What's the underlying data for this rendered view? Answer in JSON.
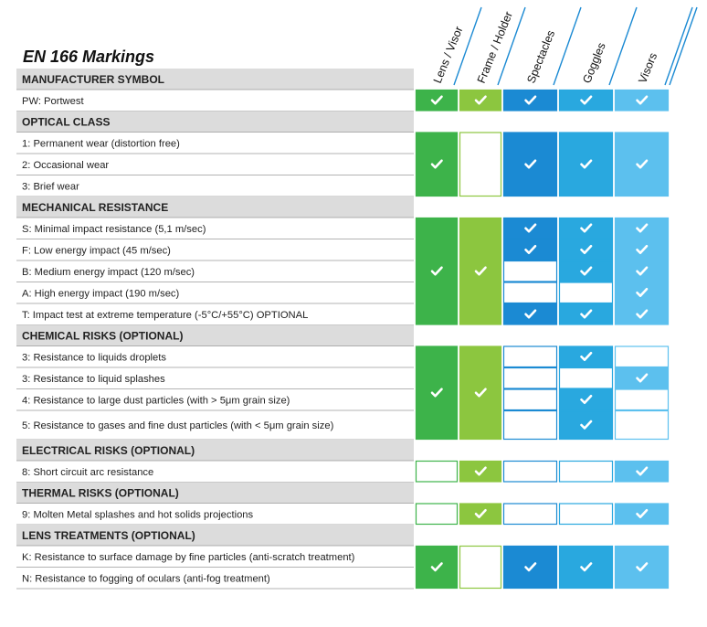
{
  "title": "EN 166 Markings",
  "columns": [
    "Lens / Visor",
    "Frame / Holder",
    "Spectacles",
    "Goggles",
    "Visors"
  ],
  "colors": {
    "green": "#3db34a",
    "light_green": "#8cc63f",
    "blue": "#1b8ad3",
    "mid_blue": "#29a8df",
    "light_blue": "#5cc0ee",
    "header_bg": "#dcdcdc",
    "rule": "#9a9a9a",
    "check": "#ffffff"
  },
  "sections": [
    {
      "name": "MANUFACTURER SYMBOL",
      "rows": [
        {
          "label": "PW: Portwest"
        }
      ],
      "blocks": [
        {
          "rows": [
            0,
            0
          ],
          "marks": [
            true,
            true,
            true,
            true,
            true
          ]
        }
      ]
    },
    {
      "name": "OPTICAL CLASS",
      "rows": [
        {
          "label": "1: Permanent wear (distortion free)"
        },
        {
          "label": "2: Occasional wear"
        },
        {
          "label": "3: Brief wear"
        }
      ],
      "blocks": [
        {
          "rows": [
            0,
            2
          ],
          "marks": [
            true,
            false,
            true,
            true,
            true
          ]
        }
      ]
    },
    {
      "name": "MECHANICAL RESISTANCE",
      "rows": [
        {
          "label": "S: Minimal impact resistance (5,1 m/sec)",
          "marks": [
            null,
            null,
            true,
            true,
            true
          ]
        },
        {
          "label": "F: Low energy impact (45 m/sec)",
          "marks": [
            null,
            null,
            true,
            true,
            true
          ]
        },
        {
          "label": "B: Medium energy impact (120 m/sec)",
          "marks": [
            null,
            null,
            false,
            true,
            true
          ]
        },
        {
          "label": "A: High energy impact (190 m/sec)",
          "marks": [
            null,
            null,
            false,
            false,
            true
          ]
        },
        {
          "label": "T: Impact test at extreme temperature (-5°C/+55°C) OPTIONAL",
          "marks": [
            null,
            null,
            true,
            true,
            true
          ]
        }
      ],
      "blocks": [
        {
          "rows": [
            0,
            4
          ],
          "marks": [
            true,
            true,
            null,
            null,
            null
          ]
        }
      ]
    },
    {
      "name": "CHEMICAL RISKS (OPTIONAL)",
      "rows": [
        {
          "label": "3: Resistance to liquids droplets",
          "marks": [
            null,
            null,
            false,
            true,
            false
          ]
        },
        {
          "label": "3: Resistance to liquid splashes",
          "marks": [
            null,
            null,
            false,
            false,
            true
          ]
        },
        {
          "label": "4: Resistance to large dust particles (with > 5μm grain size)",
          "marks": [
            null,
            null,
            false,
            true,
            false
          ]
        },
        {
          "label": "5: Resistance to gases and fine dust particles (with < 5μm grain size)",
          "marks": [
            null,
            null,
            false,
            true,
            false
          ]
        }
      ],
      "blocks": [
        {
          "rows": [
            0,
            3
          ],
          "marks": [
            true,
            true,
            null,
            null,
            null
          ]
        }
      ]
    },
    {
      "name": "ELECTRICAL RISKS (OPTIONAL)",
      "rows": [
        {
          "label": "8: Short circuit arc resistance",
          "marks": [
            false,
            true,
            false,
            false,
            true
          ]
        }
      ],
      "blocks": []
    },
    {
      "name": "THERMAL RISKS (OPTIONAL)",
      "rows": [
        {
          "label": "9: Molten Metal splashes and hot solids projections",
          "marks": [
            false,
            true,
            false,
            false,
            true
          ]
        }
      ],
      "blocks": []
    },
    {
      "name": "LENS TREATMENTS (OPTIONAL)",
      "rows": [
        {
          "label": "K: Resistance to surface damage by fine particles (anti-scratch treatment)"
        },
        {
          "label": "N: Resistance to fogging of oculars (anti-fog treatment)"
        }
      ],
      "blocks": [
        {
          "rows": [
            0,
            1
          ],
          "marks": [
            true,
            false,
            true,
            true,
            true
          ]
        }
      ]
    }
  ]
}
